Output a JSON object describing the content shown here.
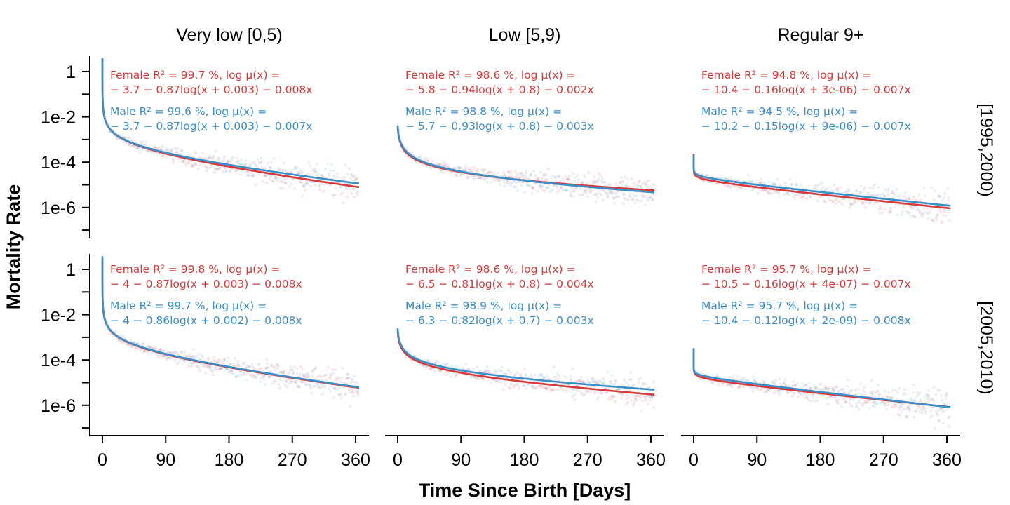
{
  "chart_data": {
    "type": "line",
    "layout": "facet grid, 2 rows x 3 columns",
    "xlabel": "Time Since Birth [Days]",
    "ylabel": "Mortality Rate",
    "y_scale": "log10",
    "xlim": [
      -5,
      365
    ],
    "ylim": [
      2e-07,
      3
    ],
    "x_ticks": [
      0,
      90,
      180,
      270,
      360
    ],
    "x_tick_labels": [
      "0",
      "90",
      "180",
      "270",
      "360"
    ],
    "y_ticks": [
      1,
      0.01,
      0.0001,
      1e-06
    ],
    "y_tick_labels": [
      "1",
      "1e-2",
      "1e-4",
      "1e-6"
    ],
    "columns": [
      "Very low [0,5)",
      "Low [5,9)",
      "Regular 9+"
    ],
    "rows": [
      "[1995,2000)",
      "[2005,2010)"
    ],
    "colors": {
      "Female": "#d63a3a",
      "Male": "#3a8fc8"
    },
    "grid": false,
    "legend": "none",
    "panels": [
      {
        "row": "[1995,2000)",
        "column": "Very low [0,5)",
        "female": {
          "label_1": "Female  R² = 99.7  %,  log  μ(x) =",
          "label_2": "− 3.7 − 0.87log(x + 0.003)  − 0.008x",
          "a": -3.7,
          "b": 0.87,
          "c": 0.003,
          "d": 0.008
        },
        "male": {
          "label_1": "Male  R² = 99.6  %,  log  μ(x) =",
          "label_2": "− 3.7 − 0.87log(x + 0.003)  − 0.007x",
          "a": -3.7,
          "b": 0.87,
          "c": 0.003,
          "d": 0.007
        }
      },
      {
        "row": "[1995,2000)",
        "column": "Low [5,9)",
        "female": {
          "label_1": "Female  R² = 98.6  %,  log  μ(x) =",
          "label_2": "− 5.8 − 0.94log(x + 0.8)  − 0.002x",
          "a": -5.8,
          "b": 0.94,
          "c": 0.8,
          "d": 0.002
        },
        "male": {
          "label_1": "Male  R² = 98.8  %,  log  μ(x) =",
          "label_2": "− 5.7 − 0.93log(x + 0.8)  − 0.003x",
          "a": -5.7,
          "b": 0.93,
          "c": 0.8,
          "d": 0.003
        }
      },
      {
        "row": "[1995,2000)",
        "column": "Regular 9+",
        "female": {
          "label_1": "Female  R² = 94.8  %,  log  μ(x) =",
          "label_2": "− 10.4 − 0.16log(x + 3e-06)  − 0.007x",
          "a": -10.4,
          "b": 0.16,
          "c": 3e-06,
          "d": 0.007
        },
        "male": {
          "label_1": "Male  R² = 94.5  %,  log  μ(x) =",
          "label_2": "− 10.2 − 0.15log(x + 9e-06)  − 0.007x",
          "a": -10.2,
          "b": 0.15,
          "c": 9e-06,
          "d": 0.007
        }
      },
      {
        "row": "[2005,2010)",
        "column": "Very low [0,5)",
        "female": {
          "label_1": "Female  R² = 99.8  %,  log  μ(x) =",
          "label_2": "− 4 − 0.87log(x + 0.003)  − 0.008x",
          "a": -4,
          "b": 0.87,
          "c": 0.003,
          "d": 0.008
        },
        "male": {
          "label_1": "Male  R² = 99.7  %,  log  μ(x) =",
          "label_2": "− 4 − 0.86log(x + 0.002)  − 0.008x",
          "a": -4,
          "b": 0.86,
          "c": 0.002,
          "d": 0.008
        }
      },
      {
        "row": "[2005,2010)",
        "column": "Low [5,9)",
        "female": {
          "label_1": "Female  R² = 98.6  %,  log  μ(x) =",
          "label_2": "− 6.5 − 0.81log(x + 0.8)  − 0.004x",
          "a": -6.5,
          "b": 0.81,
          "c": 0.8,
          "d": 0.004
        },
        "male": {
          "label_1": "Male  R² = 98.9  %,  log  μ(x) =",
          "label_2": "− 6.3 − 0.82log(x + 0.7)  − 0.003x",
          "a": -6.3,
          "b": 0.82,
          "c": 0.7,
          "d": 0.003
        }
      },
      {
        "row": "[2005,2010)",
        "column": "Regular 9+",
        "female": {
          "label_1": "Female  R² = 95.7  %,  log  μ(x) =",
          "label_2": "− 10.5 − 0.16log(x + 4e-07)  − 0.007x",
          "a": -10.5,
          "b": 0.16,
          "c": 4e-07,
          "d": 0.007
        },
        "male": {
          "label_1": "Male  R² = 95.7  %,  log  μ(x) =",
          "label_2": "− 10.4 − 0.12log(x + 2e-09)  − 0.008x",
          "a": -10.4,
          "b": 0.12,
          "c": 2e-09,
          "d": 0.008
        }
      }
    ]
  }
}
